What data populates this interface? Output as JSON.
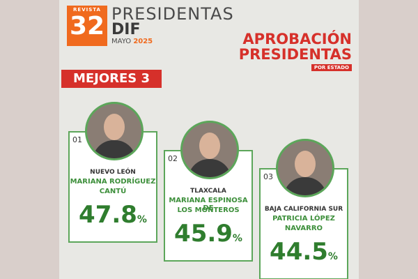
{
  "header": {
    "logo": {
      "top": "REVISTA",
      "number": "32"
    },
    "title": "PRESIDENTAS",
    "subtitle": "DIF",
    "month": "MAYO",
    "year": "2025"
  },
  "headline": {
    "lines": [
      "APROBACIÓN",
      "PRESIDENTAS"
    ],
    "tag": "POR ESTADO"
  },
  "section": "MEJORES 3",
  "cards": [
    {
      "rank": "01",
      "state": "NUEVO LEÓN",
      "name": [
        "MARIANA RODRÍGUEZ",
        "CANTÚ"
      ],
      "value": 47.8,
      "unit": "%"
    },
    {
      "rank": "02",
      "state": "TLAXCALA",
      "name": [
        "MARIANA ESPINOSA DE",
        "LOS MONTEROS"
      ],
      "value": 45.9,
      "unit": "%"
    },
    {
      "rank": "03",
      "state": "BAJA CALIFORNIA SUR",
      "name": [
        "PATRICIA LÓPEZ",
        "NAVARRO"
      ],
      "value": 44.5,
      "unit": "%"
    }
  ]
}
